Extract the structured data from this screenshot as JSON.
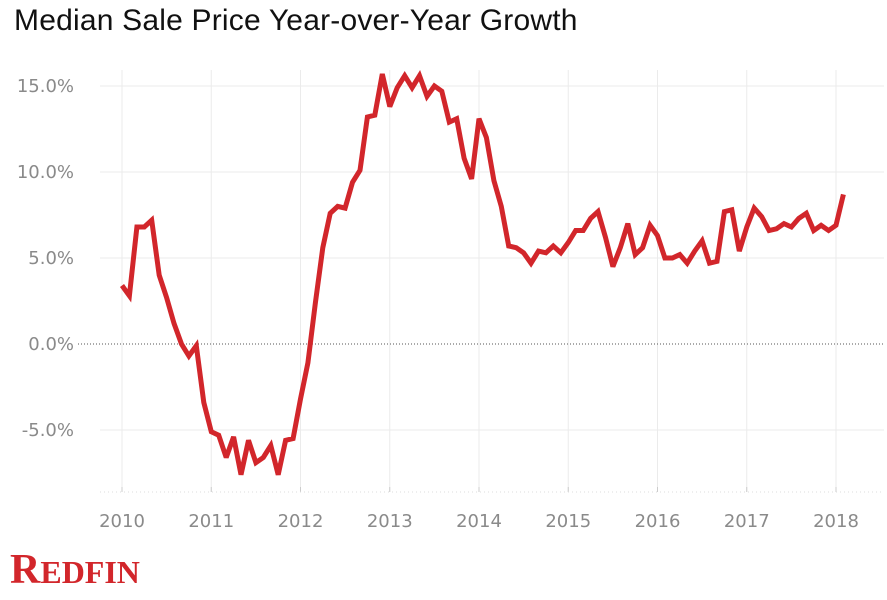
{
  "chart_data": {
    "type": "line",
    "title": "Median Sale Price Year-over-Year Growth",
    "xlabel": "",
    "ylabel": "",
    "xlim": [
      2009.75,
      2018.5
    ],
    "ylim": [
      -8.5,
      16.5
    ],
    "x_ticks": [
      2010,
      2011,
      2012,
      2013,
      2014,
      2015,
      2016,
      2017,
      2018
    ],
    "y_ticks": [
      -5,
      0,
      5,
      10,
      15
    ],
    "y_tick_labels": [
      "-5.0%",
      "0.0%",
      "5.0%",
      "10.0%",
      "15.0%"
    ],
    "grid": true,
    "zero_line": "dotted",
    "colors": {
      "line": "#d2262b",
      "grid": "#ebebeb",
      "axis_text": "#8a8a8a"
    },
    "series": [
      {
        "x": [
          2010.0,
          2010.083,
          2010.167,
          2010.25,
          2010.333,
          2010.417,
          2010.5,
          2010.583,
          2010.667,
          2010.75,
          2010.833,
          2010.917,
          2011.0,
          2011.083,
          2011.167,
          2011.25,
          2011.333,
          2011.417,
          2011.5,
          2011.583,
          2011.667,
          2011.75,
          2011.833,
          2011.917,
          2012.0,
          2012.083,
          2012.167,
          2012.25,
          2012.333,
          2012.417,
          2012.5,
          2012.583,
          2012.667,
          2012.75,
          2012.833,
          2012.917,
          2013.0,
          2013.083,
          2013.167,
          2013.25,
          2013.333,
          2013.417,
          2013.5,
          2013.583,
          2013.667,
          2013.75,
          2013.833,
          2013.917,
          2014.0,
          2014.083,
          2014.167,
          2014.25,
          2014.333,
          2014.417,
          2014.5,
          2014.583,
          2014.667,
          2014.75,
          2014.833,
          2014.917,
          2015.0,
          2015.083,
          2015.167,
          2015.25,
          2015.333,
          2015.417,
          2015.5,
          2015.583,
          2015.667,
          2015.75,
          2015.833,
          2015.917,
          2016.0,
          2016.083,
          2016.167,
          2016.25,
          2016.333,
          2016.417,
          2016.5,
          2016.583,
          2016.667,
          2016.75,
          2016.833,
          2016.917,
          2017.0,
          2017.083,
          2017.167,
          2017.25,
          2017.333,
          2017.417,
          2017.5,
          2017.583,
          2017.667,
          2017.75,
          2017.833,
          2017.917,
          2018.0,
          2018.083
        ],
        "values": [
          3.4,
          2.8,
          6.8,
          6.8,
          7.2,
          4.0,
          2.7,
          1.2,
          0.0,
          -0.7,
          -0.1,
          -3.4,
          -5.1,
          -5.3,
          -6.6,
          -5.4,
          -7.6,
          -5.6,
          -6.9,
          -6.6,
          -5.9,
          -7.6,
          -5.6,
          -5.5,
          -3.2,
          -1.1,
          2.4,
          5.6,
          7.6,
          8.0,
          7.9,
          9.4,
          10.1,
          13.2,
          13.3,
          15.7,
          13.8,
          14.9,
          15.6,
          14.9,
          15.6,
          14.4,
          15.0,
          14.7,
          12.9,
          13.1,
          10.8,
          9.6,
          13.1,
          12.0,
          9.5,
          8.0,
          5.7,
          5.6,
          5.3,
          4.7,
          5.4,
          5.3,
          5.7,
          5.3,
          5.9,
          6.6,
          6.6,
          7.3,
          7.7,
          6.2,
          4.5,
          5.6,
          7.0,
          5.2,
          5.6,
          6.9,
          6.3,
          5.0,
          5.0,
          5.2,
          4.7,
          5.4,
          6.0,
          4.7,
          4.8,
          7.7,
          7.8,
          5.4,
          6.8,
          7.9,
          7.4,
          6.6,
          6.7,
          7.0,
          6.8,
          7.3,
          7.6,
          6.6,
          6.9,
          6.6,
          6.9,
          8.7
        ]
      }
    ]
  },
  "brand": {
    "first": "R",
    "rest": "EDFIN"
  }
}
